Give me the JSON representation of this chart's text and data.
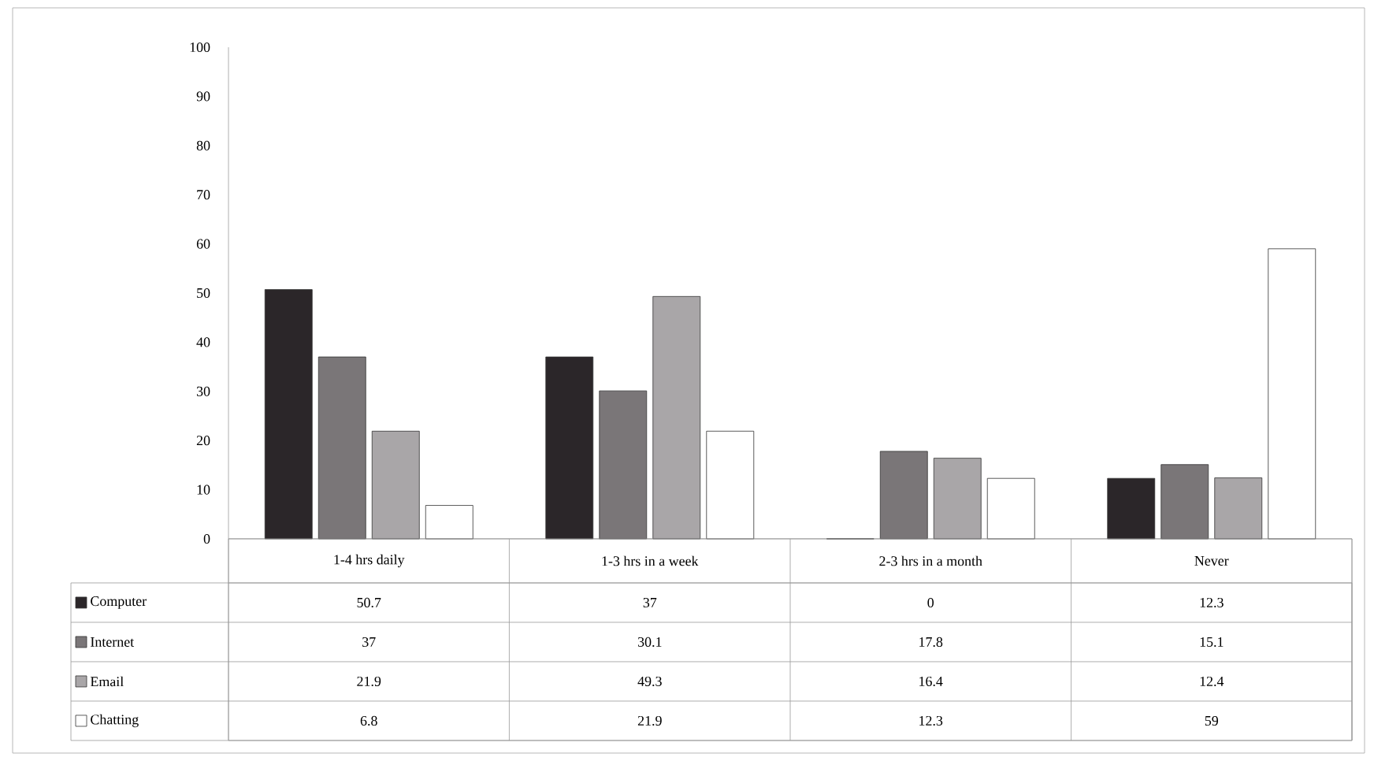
{
  "chart_data": {
    "type": "bar",
    "categories": [
      "1-4 hrs daily",
      "1-3 hrs in a week",
      "2-3 hrs in a month",
      "Never"
    ],
    "series": [
      {
        "name": "Computer",
        "color": "#2b2629",
        "values": [
          50.7,
          37,
          0,
          12.3
        ]
      },
      {
        "name": "Internet",
        "color": "#7a7678",
        "values": [
          37,
          30.1,
          17.8,
          15.1
        ]
      },
      {
        "name": "Email",
        "color": "#a9a6a8",
        "values": [
          21.9,
          49.3,
          16.4,
          12.4
        ]
      },
      {
        "name": "Chatting",
        "color": "#ffffff",
        "values": [
          6.8,
          21.9,
          12.3,
          59
        ]
      }
    ],
    "ylim": [
      0,
      100
    ],
    "yticks": [
      0,
      10,
      20,
      30,
      40,
      50,
      60,
      70,
      80,
      90,
      100
    ],
    "grid": false,
    "legend": "bottom",
    "data_labels": true
  }
}
